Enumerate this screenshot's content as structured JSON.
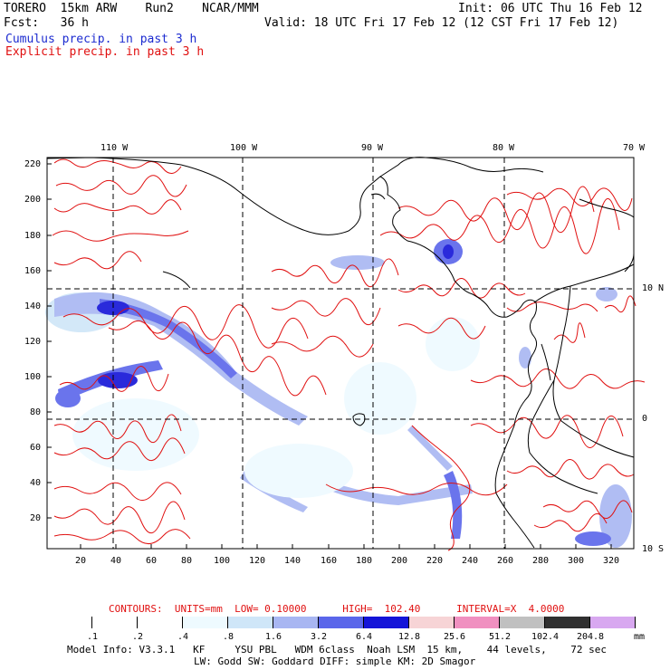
{
  "header": {
    "model": "TORERO  15km ARW    Run2    NCAR/MMM",
    "init": "Init: 06 UTC Thu 16 Feb 12",
    "fcst": "Fcst:   36 h",
    "valid": "Valid: 18 UTC Fri 17 Feb 12 (12 CST Fri 17 Feb 12)",
    "cumulus": "Cumulus precip. in past 3 h",
    "explicit": "Explicit precip. in past 3 h"
  },
  "map": {
    "top_lon_labels": [
      "110 W",
      "100 W",
      "90 W",
      "80 W",
      "70 W"
    ],
    "right_lat_labels": [
      "10 N",
      "0",
      "10 S"
    ],
    "y_ticks": [
      "220",
      "200",
      "180",
      "160",
      "140",
      "120",
      "100",
      "80",
      "60",
      "40",
      "20"
    ],
    "x_ticks": [
      "20",
      "40",
      "60",
      "80",
      "100",
      "120",
      "140",
      "160",
      "180",
      "200",
      "220",
      "240",
      "260",
      "280",
      "300",
      "320"
    ]
  },
  "contours": {
    "line": "CONTOURS:  UNITS=mm  LOW= 0.10000      HIGH=  102.40      INTERVAL=X  4.0000"
  },
  "colorbar": {
    "labels": [
      ".1",
      ".2",
      ".4",
      ".8",
      "1.6",
      "3.2",
      "6.4",
      "12.8",
      "25.6",
      "51.2",
      "102.4",
      "204.8"
    ],
    "unit": "mm",
    "colors": [
      "#ffffff",
      "#ffffff",
      "#ffffff",
      "#eefaff",
      "#cfe6f8",
      "#a8b6f2",
      "#5a66ea",
      "#1414d8",
      "#f7d4d6",
      "#f090c0",
      "#c0c0c0",
      "#303030",
      "#d8a8f0"
    ]
  },
  "footer": {
    "line1": "Model Info: V3.3.1   KF     YSU PBL   WDM 6class  Noah LSM  15 km,    44 levels,    72 sec",
    "line2": "LW: Godd SW: Goddard DIFF: simple KM: 2D Smagor"
  }
}
